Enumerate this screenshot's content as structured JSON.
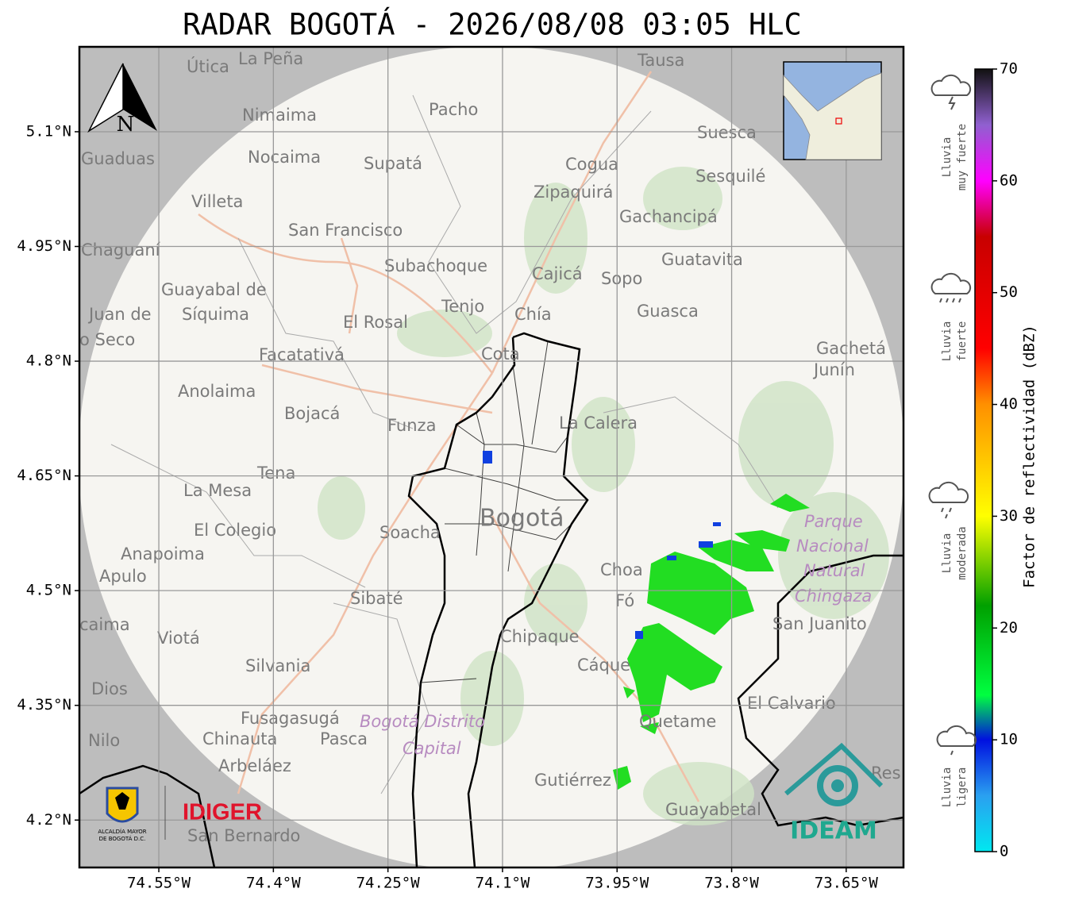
{
  "header": {
    "title": "RADAR BOGOTÁ - 2026/08/08 03:05 HLC"
  },
  "map": {
    "xlim": [
      -74.654,
      -73.575
    ],
    "ylim": [
      4.138,
      5.211
    ],
    "xticks": [
      {
        "value": -74.55,
        "label": "74.55°W"
      },
      {
        "value": -74.4,
        "label": "74.4°W"
      },
      {
        "value": -74.25,
        "label": "74.25°W"
      },
      {
        "value": -74.1,
        "label": "74.1°W"
      },
      {
        "value": -73.95,
        "label": "73.95°W"
      },
      {
        "value": -73.8,
        "label": "73.8°W"
      },
      {
        "value": -73.65,
        "label": "73.65°W"
      }
    ],
    "yticks": [
      {
        "value": 5.1,
        "label": "5.1°N"
      },
      {
        "value": 4.95,
        "label": "4.95°N"
      },
      {
        "value": 4.8,
        "label": "4.8°N"
      },
      {
        "value": 4.65,
        "label": "4.65°N"
      },
      {
        "value": 4.5,
        "label": "4.5°N"
      },
      {
        "value": 4.35,
        "label": "4.35°N"
      },
      {
        "value": 4.2,
        "label": "4.2°N"
      }
    ],
    "grid": true,
    "north_label": "N",
    "places": [
      "Útica",
      "La Peña",
      "Tausa",
      "Pacho",
      "Nimaima",
      "Guaduas",
      "Nocaima",
      "Supatá",
      "Cogua",
      "Suesca",
      "Sesquilé",
      "Zipaquirá",
      "Villeta",
      "Gachancipá",
      "San Francisco",
      "Chaguaní",
      "Subachoque",
      "Guatavita",
      "Cajicá",
      "Sopo",
      "Guayabal de",
      "Síquima",
      "Juan de",
      "o Seco",
      "Tenjo",
      "Chía",
      "El Rosal",
      "Guasca",
      "Facatativá",
      "Cota",
      "Gachetá",
      "Junín",
      "Anolaima",
      "Bojacá",
      "Funza",
      "La Calera",
      "Tena",
      "La Mesa",
      "Bogotá",
      "Parque",
      "Nacional",
      "Natural",
      "Chingaza",
      "El Colegio",
      "Soacha",
      "Anapoima",
      "Apulo",
      "Choa",
      "Fó",
      "Sibaté",
      "San Juanito",
      "caima",
      "Viotá",
      "Chipaque",
      "Cáque",
      "Silvania",
      "Dios",
      "El Calvario",
      "Fusagasugá",
      "Bogotá Distrito",
      "Capital",
      "Quetame",
      "Nilo",
      "Chinauta",
      "Pasca",
      "Arbeláez",
      "Res",
      "Gutiérrez",
      "Guayabetal",
      "San Bernardo"
    ]
  },
  "colorbar": {
    "label": "Factor de reflectividad (dBZ)",
    "lim": [
      0,
      70
    ],
    "ticks": [
      0,
      10,
      20,
      30,
      40,
      50,
      60,
      70
    ],
    "stops": [
      {
        "value": 0,
        "color": "#00e8f0"
      },
      {
        "value": 5,
        "color": "#2aa0f0"
      },
      {
        "value": 10,
        "color": "#0010e0"
      },
      {
        "value": 14,
        "color": "#00ff40"
      },
      {
        "value": 22,
        "color": "#00a000"
      },
      {
        "value": 30,
        "color": "#ffff00"
      },
      {
        "value": 40,
        "color": "#ff9000"
      },
      {
        "value": 45,
        "color": "#ff0000"
      },
      {
        "value": 55,
        "color": "#c80000"
      },
      {
        "value": 60,
        "color": "#ff00ff"
      },
      {
        "value": 65,
        "color": "#9060d0"
      },
      {
        "value": 70,
        "color": "#111111"
      }
    ]
  },
  "rain_levels": [
    {
      "lines": [
        "Lluvia",
        "muy fuerte"
      ]
    },
    {
      "lines": [
        "Lluvia",
        "fuerte"
      ]
    },
    {
      "lines": [
        "Lluvia",
        "moderada"
      ]
    },
    {
      "lines": [
        "Lluvia",
        "ligera"
      ]
    }
  ],
  "logos": {
    "alcaldia": [
      "ALCALDÍA MAYOR",
      "DE BOGOTÁ D.C."
    ],
    "idiger": "IDIGER",
    "ideam": "IDEAM"
  }
}
